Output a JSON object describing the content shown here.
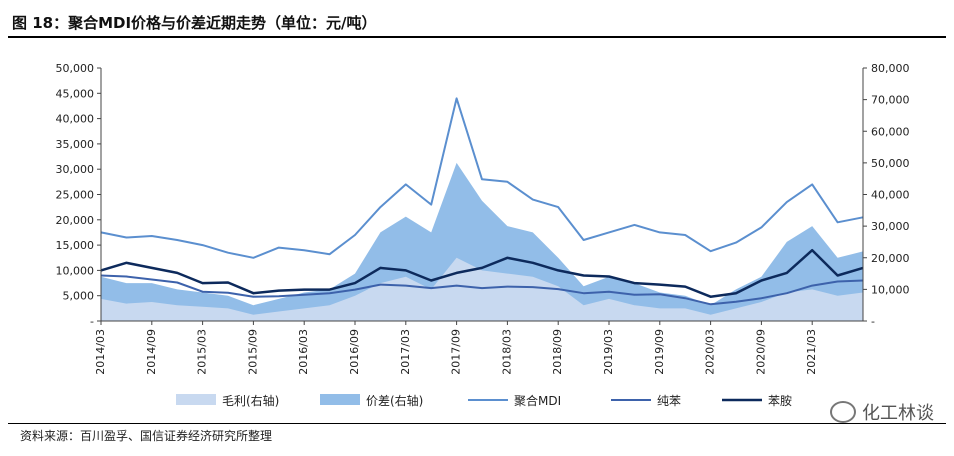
{
  "title": "图 18：聚合MDI价格与价差近期走势（单位：元/吨）",
  "source": "资料来源：百川盈孚、国信证券经济研究所整理",
  "watermark": "化工林谈",
  "watermark_icon": "wechat-icon",
  "colors": {
    "margin": "#c8d9f0",
    "spread": "#92bde8",
    "mdi": "#5b8fcf",
    "benzene": "#3d62ab",
    "aniline": "#0d2a5c"
  },
  "chart_data": {
    "type": "area",
    "x_ticks": [
      "2014/03",
      "2014/09",
      "2015/03",
      "2015/09",
      "2016/03",
      "2016/09",
      "2017/03",
      "2017/09",
      "2018/03",
      "2018/09",
      "2019/03",
      "2019/09",
      "2020/03",
      "2020/09",
      "2021/03"
    ],
    "y_left": {
      "min": 0,
      "max": 50000,
      "ticks": [
        "-",
        "5,000",
        "10,000",
        "15,000",
        "20,000",
        "25,000",
        "30,000",
        "35,000",
        "40,000",
        "45,000",
        "50,000"
      ]
    },
    "y_right": {
      "min": 0,
      "max": 80000,
      "ticks": [
        "-",
        "10,000",
        "20,000",
        "30,000",
        "40,000",
        "50,000",
        "60,000",
        "70,000",
        "80,000"
      ]
    },
    "grid": false,
    "legend_position": "bottom",
    "x": [
      "2014/03",
      "2014/06",
      "2014/09",
      "2014/12",
      "2015/03",
      "2015/06",
      "2015/09",
      "2015/12",
      "2016/03",
      "2016/06",
      "2016/09",
      "2016/12",
      "2017/03",
      "2017/06",
      "2017/09",
      "2017/12",
      "2018/03",
      "2018/06",
      "2018/09",
      "2018/12",
      "2019/03",
      "2019/06",
      "2019/09",
      "2019/12",
      "2020/03",
      "2020/06",
      "2020/09",
      "2020/12",
      "2021/03",
      "2021/06",
      "2021/08"
    ],
    "series": [
      {
        "name": "毛利(右轴)",
        "type": "area",
        "axis": "right",
        "values": [
          7000,
          5500,
          6000,
          5000,
          4500,
          4000,
          2000,
          3000,
          4000,
          5000,
          8000,
          12000,
          14000,
          10000,
          20000,
          16000,
          15000,
          14000,
          11000,
          5000,
          7000,
          5000,
          4000,
          4000,
          2000,
          4000,
          6000,
          9000,
          10000,
          8000,
          9000
        ]
      },
      {
        "name": "价差(右轴)",
        "type": "area",
        "axis": "right",
        "values": [
          14000,
          12000,
          12000,
          10000,
          9000,
          8000,
          5000,
          7000,
          9000,
          10000,
          15000,
          28000,
          33000,
          28000,
          50000,
          38000,
          30000,
          28000,
          20000,
          11000,
          14000,
          12000,
          9000,
          8000,
          5000,
          10000,
          14000,
          25000,
          30000,
          20000,
          22000
        ]
      },
      {
        "name": "聚合MDI",
        "type": "line",
        "axis": "left",
        "values": [
          17500,
          16500,
          16800,
          16000,
          15000,
          13500,
          12500,
          14500,
          14000,
          13200,
          17000,
          22500,
          27000,
          23000,
          44000,
          28000,
          27500,
          24000,
          22500,
          16000,
          17500,
          19000,
          17500,
          17000,
          13800,
          15500,
          18500,
          23500,
          27000,
          19500,
          20500
        ]
      },
      {
        "name": "纯苯",
        "type": "line",
        "axis": "left",
        "values": [
          9000,
          8800,
          8200,
          7600,
          5800,
          5600,
          4800,
          4900,
          5200,
          5500,
          6200,
          7200,
          7000,
          6500,
          7000,
          6500,
          6800,
          6700,
          6300,
          5500,
          5800,
          5200,
          5300,
          4500,
          3300,
          3800,
          4500,
          5500,
          7000,
          7800,
          8000
        ]
      },
      {
        "name": "苯胺",
        "type": "line",
        "axis": "left",
        "values": [
          10000,
          11500,
          10500,
          9500,
          7500,
          7600,
          5500,
          6000,
          6200,
          6200,
          7500,
          10500,
          10000,
          8000,
          9500,
          10500,
          12500,
          11500,
          10000,
          9000,
          8800,
          7500,
          7200,
          6800,
          4800,
          5500,
          8000,
          9500,
          14000,
          9000,
          10500
        ]
      }
    ]
  }
}
